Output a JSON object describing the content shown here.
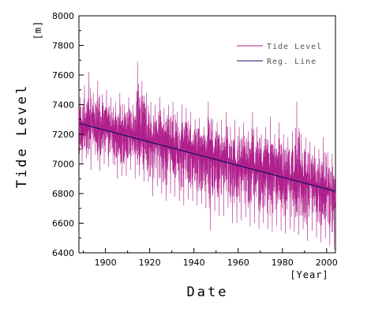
{
  "chart_data": {
    "type": "line",
    "xlabel": "Date",
    "ylabel": "Tide Level",
    "x_unit": "[Year]",
    "y_unit": "[m]",
    "xlim": [
      1888,
      2004
    ],
    "ylim": [
      6400,
      8000
    ],
    "x_ticks": [
      1900,
      1920,
      1940,
      1960,
      1980,
      2000
    ],
    "y_ticks": [
      6400,
      6600,
      6800,
      7000,
      7200,
      7400,
      7600,
      7800,
      8000
    ],
    "grid": false,
    "legend_position": "top-right",
    "colors": {
      "tide": "#b0208c",
      "regression": "#101060"
    },
    "series": [
      {
        "name": "Tide Level",
        "style": "line",
        "x": [
          1888,
          1890,
          1892,
          1894,
          1896,
          1898,
          1900,
          1902,
          1904,
          1906,
          1908,
          1910,
          1912,
          1914,
          1916,
          1918,
          1920,
          1922,
          1924,
          1926,
          1928,
          1930,
          1932,
          1934,
          1936,
          1938,
          1940,
          1942,
          1944,
          1946,
          1948,
          1950,
          1952,
          1954,
          1956,
          1958,
          1960,
          1962,
          1964,
          1966,
          1968,
          1970,
          1972,
          1974,
          1976,
          1978,
          1980,
          1982,
          1984,
          1986,
          1988,
          1990,
          1992,
          1994,
          1996,
          1998,
          2000,
          2002,
          2004
        ],
        "y_mean": [
          7280,
          7250,
          7240,
          7280,
          7220,
          7250,
          7260,
          7230,
          7240,
          7180,
          7220,
          7230,
          7200,
          7210,
          7190,
          7180,
          7150,
          7170,
          7150,
          7120,
          7140,
          7130,
          7110,
          7090,
          7120,
          7100,
          7070,
          7060,
          7050,
          7080,
          7060,
          7040,
          7030,
          7050,
          7020,
          7000,
          6990,
          7010,
          6980,
          6990,
          6950,
          6970,
          6960,
          6940,
          6950,
          6920,
          6900,
          6930,
          6910,
          6880,
          6900,
          6870,
          6880,
          6860,
          6850,
          6870,
          6840,
          6830,
          6800
        ],
        "y_max": [
          7450,
          7530,
          7620,
          7480,
          7560,
          7470,
          7500,
          7450,
          7420,
          7480,
          7400,
          7450,
          7400,
          7690,
          7560,
          7480,
          7420,
          7400,
          7450,
          7380,
          7400,
          7420,
          7350,
          7400,
          7380,
          7350,
          7300,
          7310,
          7250,
          7420,
          7300,
          7280,
          7300,
          7350,
          7250,
          7300,
          7250,
          7280,
          7220,
          7350,
          7250,
          7200,
          7250,
          7320,
          7200,
          7280,
          7200,
          7180,
          7220,
          7420,
          7200,
          7180,
          7150,
          7120,
          7100,
          7180,
          7080,
          7070,
          6950
        ],
        "y_min": [
          7000,
          7040,
          6960,
          7060,
          6950,
          7000,
          6980,
          7000,
          6900,
          6920,
          6920,
          6960,
          6900,
          6920,
          6880,
          6880,
          6780,
          6850,
          6800,
          6750,
          6800,
          6780,
          6750,
          6720,
          6760,
          6750,
          6720,
          6730,
          6700,
          6550,
          6680,
          6650,
          6650,
          6700,
          6600,
          6600,
          6620,
          6640,
          6580,
          6600,
          6560,
          6600,
          6560,
          6540,
          6580,
          6550,
          6530,
          6560,
          6540,
          6520,
          6560,
          6480,
          6550,
          6500,
          6470,
          6500,
          6450,
          6420,
          6600
        ]
      },
      {
        "name": "Reg. Line",
        "style": "regression",
        "x": [
          1888,
          2004
        ],
        "y": [
          7275,
          6815
        ]
      }
    ]
  }
}
